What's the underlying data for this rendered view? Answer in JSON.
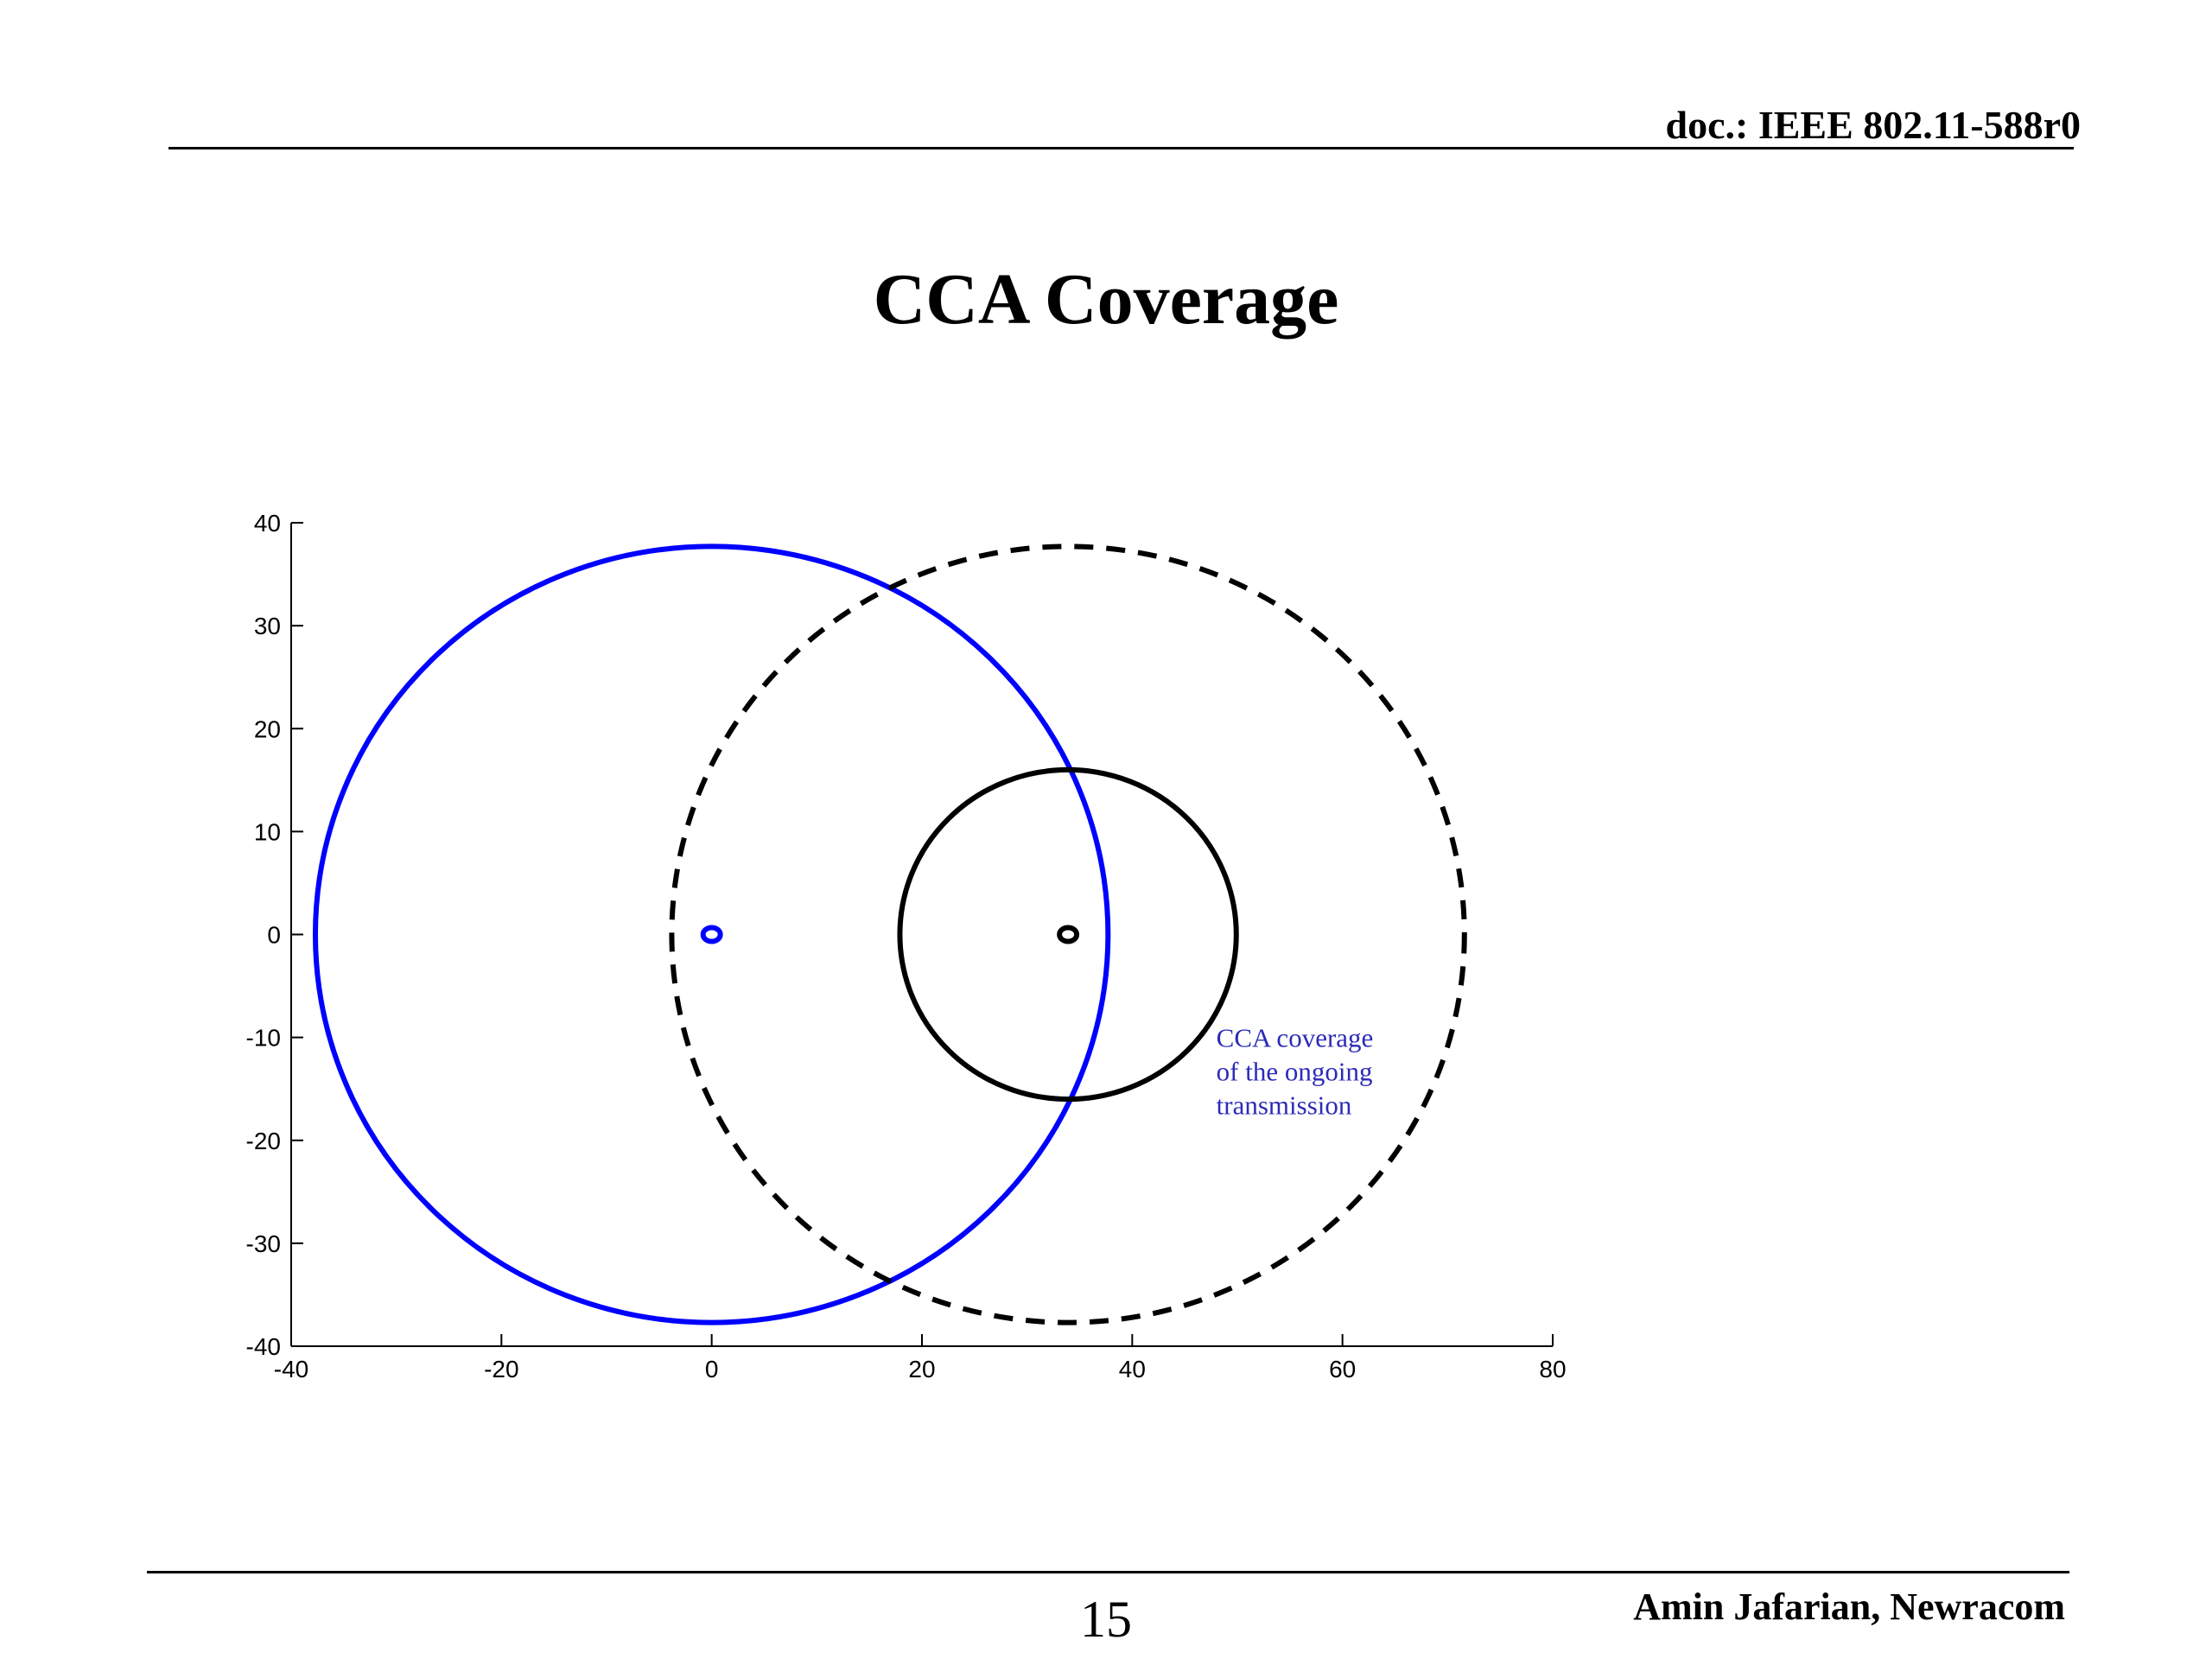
{
  "header": {
    "doc_id": "doc.: IEEE 802.11-588r0"
  },
  "slide": {
    "title": "CCA Coverage"
  },
  "footer": {
    "page_number": "15",
    "author": "Amin Jafarian, Newracom"
  },
  "chart_data": {
    "type": "scatter",
    "title": "",
    "xlabel": "",
    "ylabel": "",
    "xlim": [
      -40,
      80
    ],
    "ylim": [
      -40,
      40
    ],
    "xticks": [
      "-40",
      "-20",
      "0",
      "20",
      "40",
      "60",
      "80"
    ],
    "yticks": [
      "40",
      "30",
      "20",
      "10",
      "0",
      "-10",
      "-20",
      "-30",
      "-40"
    ],
    "grid": false,
    "series": [
      {
        "center": [
          0,
          0
        ],
        "radius": 37.7,
        "color": "#0000ff",
        "style": "solid"
      },
      {
        "center": [
          33.9,
          0
        ],
        "radius": 37.7,
        "color": "#000000",
        "style": "dashed"
      },
      {
        "center": [
          33.9,
          0
        ],
        "radius": 16.0,
        "color": "#000000",
        "style": "solid"
      }
    ],
    "points": [
      {
        "x": 0,
        "y": 0,
        "color": "#0000ff"
      },
      {
        "x": 33.9,
        "y": 0,
        "color": "#000000"
      }
    ],
    "annotations": [
      {
        "lines": [
          "CCA coverage",
          "of the ongoing",
          "transmission"
        ],
        "x": 48,
        "y": -10,
        "color": "#2b2bb8"
      }
    ]
  }
}
